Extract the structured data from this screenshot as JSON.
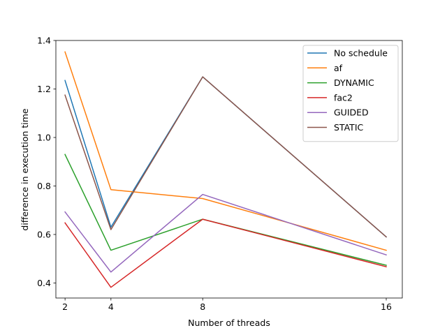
{
  "chart_data": {
    "type": "line",
    "title": "",
    "xlabel": "Number of threads",
    "ylabel": "difference in execution time",
    "x": [
      2,
      4,
      8,
      16
    ],
    "xticks": [
      2,
      4,
      8,
      16
    ],
    "xlim": [
      1.6,
      16.7
    ],
    "ylim": [
      0.338,
      1.4
    ],
    "yticks": [
      0.4,
      0.6,
      0.8,
      1.0,
      1.2,
      1.4
    ],
    "ytick_labels": [
      "0.4",
      "0.6",
      "0.8",
      "1.0",
      "1.2",
      "1.4"
    ],
    "grid": false,
    "legend_position": "top-right",
    "series": [
      {
        "name": "No schedule",
        "color": "#1f77b4",
        "values": [
          1.235,
          0.63,
          1.25,
          0.59
        ]
      },
      {
        "name": "af",
        "color": "#ff7f0e",
        "values": [
          1.353,
          0.785,
          0.748,
          0.535
        ]
      },
      {
        "name": "DYNAMIC",
        "color": "#2ca02c",
        "values": [
          0.93,
          0.535,
          0.663,
          0.473
        ]
      },
      {
        "name": "fac2",
        "color": "#d62728",
        "values": [
          0.648,
          0.382,
          0.663,
          0.467
        ]
      },
      {
        "name": "GUIDED",
        "color": "#9467bd",
        "values": [
          0.693,
          0.445,
          0.765,
          0.516
        ]
      },
      {
        "name": "STATIC",
        "color": "#8c564b",
        "values": [
          1.175,
          0.62,
          1.25,
          0.59
        ]
      }
    ]
  }
}
